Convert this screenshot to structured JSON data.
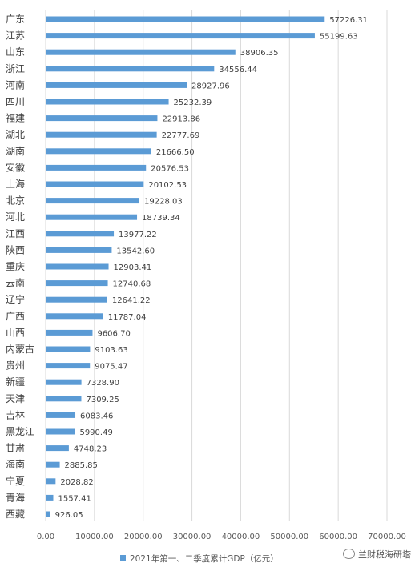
{
  "chart_data": {
    "type": "bar",
    "orientation": "horizontal",
    "categories": [
      "广东",
      "江苏",
      "山东",
      "浙江",
      "河南",
      "四川",
      "福建",
      "湖北",
      "湖南",
      "安徽",
      "上海",
      "北京",
      "河北",
      "江西",
      "陕西",
      "重庆",
      "云南",
      "辽宁",
      "广西",
      "山西",
      "内蒙古",
      "贵州",
      "新疆",
      "天津",
      "吉林",
      "黑龙江",
      "甘肃",
      "海南",
      "宁夏",
      "青海",
      "西藏"
    ],
    "series": [
      {
        "name": "2021年第一、二季度累计GDP（亿元）",
        "values": [
          57226.31,
          55199.63,
          38906.35,
          34556.44,
          28927.96,
          25232.39,
          22913.86,
          22777.69,
          21666.5,
          20576.53,
          20102.53,
          19228.03,
          18739.34,
          13977.22,
          13542.6,
          12903.41,
          12740.68,
          12641.22,
          11787.04,
          9606.7,
          9103.63,
          9075.47,
          7328.9,
          7309.25,
          6083.46,
          5990.49,
          4748.23,
          2885.85,
          2028.82,
          1557.41,
          926.05
        ],
        "labels": [
          "57226.31",
          "55199.63",
          "38906.35",
          "34556.44",
          "28927.96",
          "25232.39",
          "22913.86",
          "22777.69",
          "21666.50",
          "20576.53",
          "20102.53",
          "19228.03",
          "18739.34",
          "13977.22",
          "13542.60",
          "12903.41",
          "12740.68",
          "12641.22",
          "11787.04",
          "9606.70",
          "9103.63",
          "9075.47",
          "7328.90",
          "7309.25",
          "6083.46",
          "5990.49",
          "4748.23",
          "2885.85",
          "2028.82",
          "1557.41",
          "926.05"
        ],
        "color": "#5b9bd5"
      }
    ],
    "x_ticks": [
      "0.00",
      "10000.00",
      "20000.00",
      "30000.00",
      "40000.00",
      "50000.00",
      "60000.00",
      "70000.00"
    ],
    "xlim": [
      0,
      70000
    ],
    "grid": "vertical",
    "legend": "bottom",
    "title": "",
    "xlabel": "",
    "ylabel": ""
  },
  "watermark": {
    "text": "兰财税海研塔"
  }
}
